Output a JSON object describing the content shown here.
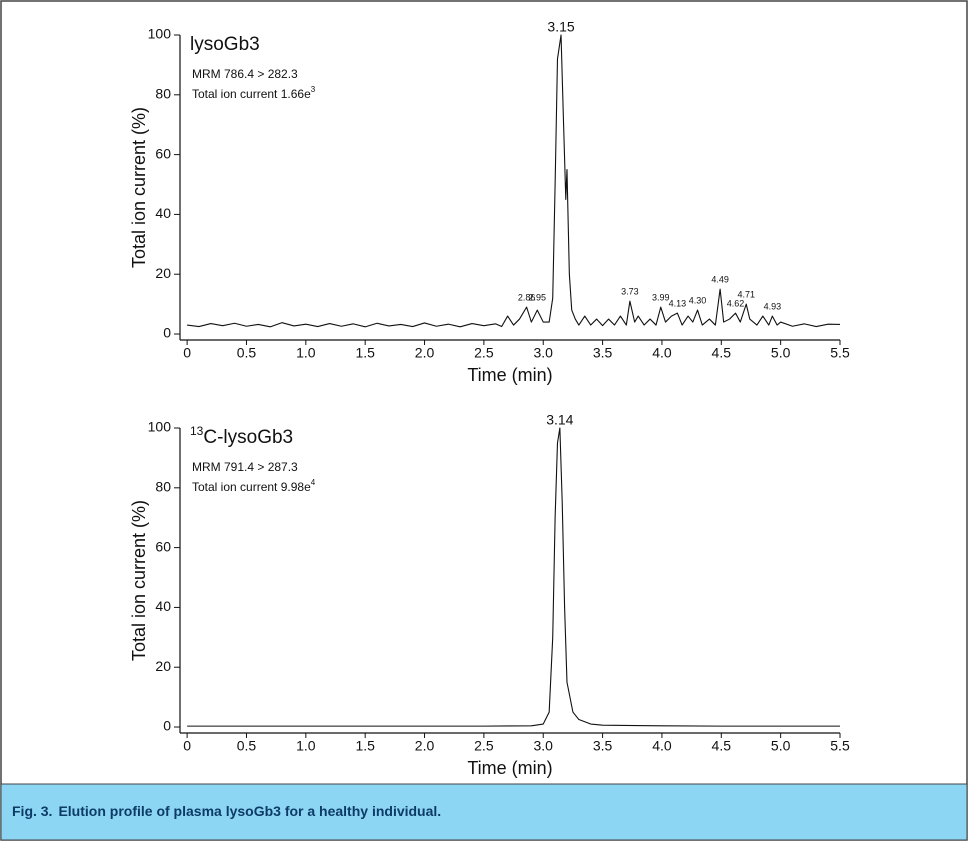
{
  "chart_data": [
    {
      "type": "line",
      "title": "lysoGb3",
      "subtitle": [
        "MRM 786.4 > 282.3"
      ],
      "note": {
        "text": "Total ion current 1.66e",
        "sup": "3"
      },
      "xlabel": "Time (min)",
      "ylabel": "Total ion current (%)",
      "color": "#111111",
      "xlim": [
        -0.06,
        5.5
      ],
      "ylim": [
        -2,
        100
      ],
      "xticks": [
        0,
        0.5,
        {
          "value": 1,
          "label": "1.0"
        },
        1.5,
        {
          "value": 2,
          "label": "2.0"
        },
        2.5,
        {
          "value": 3,
          "label": "3.0"
        },
        3.5,
        {
          "value": 4,
          "label": "4.0"
        },
        4.5,
        {
          "value": 5,
          "label": "5.0"
        },
        5.5
      ],
      "yticks": [
        0,
        20,
        40,
        60,
        80,
        100
      ],
      "x": [
        0,
        0.1,
        0.2,
        0.3,
        0.4,
        0.5,
        0.6,
        0.7,
        0.8,
        0.9,
        1.0,
        1.1,
        1.2,
        1.3,
        1.4,
        1.5,
        1.6,
        1.7,
        1.8,
        1.9,
        2.0,
        2.1,
        2.2,
        2.3,
        2.4,
        2.5,
        2.6,
        2.65,
        2.7,
        2.75,
        2.8,
        2.86,
        2.9,
        2.95,
        3.0,
        3.05,
        3.08,
        3.1,
        3.12,
        3.15,
        3.17,
        3.19,
        3.2,
        3.22,
        3.24,
        3.27,
        3.3,
        3.35,
        3.4,
        3.45,
        3.5,
        3.55,
        3.6,
        3.65,
        3.7,
        3.73,
        3.77,
        3.8,
        3.85,
        3.9,
        3.95,
        3.99,
        4.03,
        4.08,
        4.13,
        4.17,
        4.22,
        4.26,
        4.3,
        4.34,
        4.4,
        4.45,
        4.49,
        4.52,
        4.57,
        4.62,
        4.66,
        4.71,
        4.74,
        4.8,
        4.85,
        4.9,
        4.93,
        4.97,
        5.0,
        5.1,
        5.2,
        5.3,
        5.4,
        5.5
      ],
      "values": [
        3,
        2.5,
        3.5,
        2.8,
        3.6,
        2.6,
        3.2,
        2.4,
        3.8,
        2.7,
        3.3,
        2.5,
        3.5,
        2.6,
        3.4,
        2.4,
        3.6,
        2.7,
        3.2,
        2.5,
        3.7,
        2.6,
        3.3,
        2.4,
        3.5,
        2.8,
        3.4,
        2.5,
        6,
        3,
        5,
        9,
        4,
        8,
        4,
        4,
        12,
        50,
        92,
        100,
        72,
        45,
        55,
        20,
        8,
        5,
        3,
        6,
        3,
        5,
        2.8,
        5,
        3,
        6,
        3,
        11,
        4,
        6,
        3,
        5,
        3,
        9,
        4,
        6,
        7,
        3,
        6,
        4,
        8,
        3,
        5,
        3,
        15,
        4,
        5,
        7,
        4,
        10,
        5,
        3,
        6,
        3,
        6,
        3,
        4,
        2.6,
        3.4,
        2.5,
        3.3,
        3.2
      ],
      "annotations": [
        {
          "text": "3.15",
          "x": 3.15,
          "y": 100,
          "size": "big"
        },
        {
          "text": "2.86",
          "x": 2.86,
          "y": 9
        },
        {
          "text": "2.95",
          "x": 2.95,
          "y": 9
        },
        {
          "text": "3.73",
          "x": 3.73,
          "y": 11
        },
        {
          "text": "3.99",
          "x": 3.99,
          "y": 9
        },
        {
          "text": "4.13",
          "x": 4.13,
          "y": 7
        },
        {
          "text": "4.30",
          "x": 4.3,
          "y": 8
        },
        {
          "text": "4.49",
          "x": 4.49,
          "y": 15
        },
        {
          "text": "4.62",
          "x": 4.62,
          "y": 7
        },
        {
          "text": "4.71",
          "x": 4.71,
          "y": 10
        },
        {
          "text": "4.93",
          "x": 4.93,
          "y": 6
        }
      ]
    },
    {
      "type": "line",
      "title_sup": "13",
      "title": "C-lysoGb3",
      "subtitle": [
        "MRM 791.4 > 287.3"
      ],
      "note": {
        "text": "Total ion current 9.98e",
        "sup": "4"
      },
      "xlabel": "Time (min)",
      "ylabel": "Total ion current (%)",
      "color": "#111111",
      "xlim": [
        -0.06,
        5.5
      ],
      "ylim": [
        -2,
        100
      ],
      "xticks": [
        0,
        0.5,
        {
          "value": 1,
          "label": "1.0"
        },
        1.5,
        {
          "value": 2,
          "label": "2.0"
        },
        2.5,
        {
          "value": 3,
          "label": "3.0"
        },
        3.5,
        {
          "value": 4,
          "label": "4.0"
        },
        4.5,
        {
          "value": 5,
          "label": "5.0"
        },
        5.5
      ],
      "yticks": [
        0,
        20,
        40,
        60,
        80,
        100
      ],
      "x": [
        0,
        0.5,
        1,
        1.5,
        2,
        2.5,
        2.9,
        3.0,
        3.05,
        3.08,
        3.1,
        3.12,
        3.14,
        3.16,
        3.18,
        3.2,
        3.25,
        3.3,
        3.4,
        3.5,
        4,
        4.5,
        5,
        5.5
      ],
      "values": [
        0.3,
        0.3,
        0.3,
        0.3,
        0.3,
        0.3,
        0.4,
        1,
        5,
        30,
        70,
        95,
        100,
        75,
        40,
        15,
        5,
        2.5,
        1,
        0.6,
        0.4,
        0.3,
        0.3,
        0.3
      ],
      "annotations": [
        {
          "text": "3.14",
          "x": 3.14,
          "y": 100,
          "size": "big"
        }
      ]
    }
  ],
  "caption": {
    "label": "Fig. 3.",
    "text": "Elution profile of plasma lysoGb3 for a healthy individual."
  }
}
